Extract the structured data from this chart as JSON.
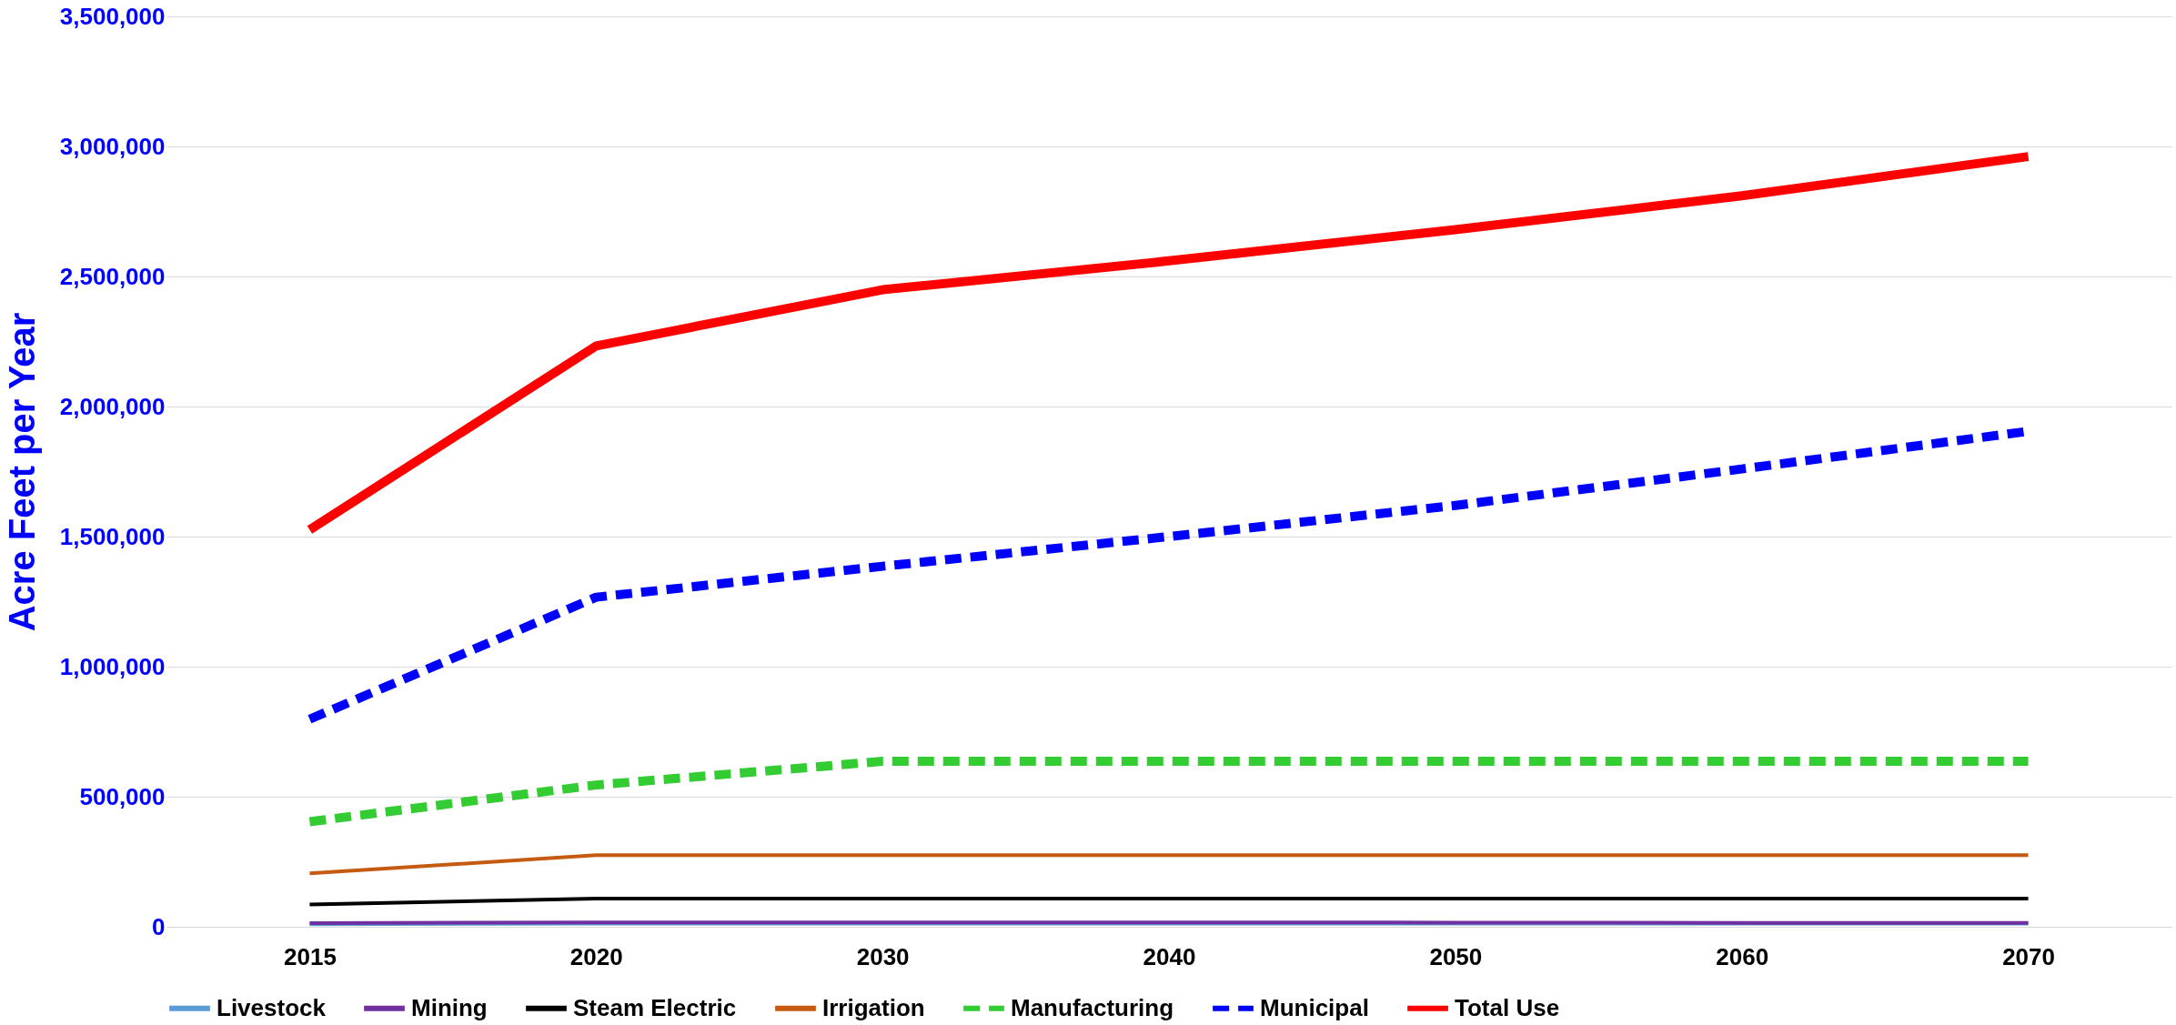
{
  "chart_data": {
    "type": "line",
    "ylabel": "Acre Feet per Year",
    "categories": [
      "2015",
      "2020",
      "2030",
      "2040",
      "2050",
      "2060",
      "2070"
    ],
    "series": [
      {
        "name": "Livestock",
        "color": "#5b9bd5",
        "line_style": "solid",
        "values": [
          10000,
          12000,
          12000,
          12000,
          12000,
          12000,
          12000
        ]
      },
      {
        "name": "Mining",
        "color": "#7030a0",
        "line_style": "solid",
        "values": [
          14000,
          17000,
          17000,
          17000,
          16000,
          15000,
          15000
        ]
      },
      {
        "name": "Steam Electric",
        "color": "#000000",
        "line_style": "solid",
        "values": [
          86000,
          108000,
          108000,
          108000,
          108000,
          108000,
          108000
        ]
      },
      {
        "name": "Irrigation",
        "color": "#c55a11",
        "line_style": "solid",
        "values": [
          205000,
          275000,
          275000,
          275000,
          275000,
          275000,
          275000
        ]
      },
      {
        "name": "Manufacturing",
        "color": "#33cc33",
        "line_style": "dashed",
        "values": [
          404000,
          545000,
          636000,
          636000,
          636000,
          636000,
          636000
        ]
      },
      {
        "name": "Municipal",
        "color": "#0000ff",
        "line_style": "dashed",
        "values": [
          798000,
          1267000,
          1386000,
          1500000,
          1620000,
          1760000,
          1905000
        ]
      },
      {
        "name": "Total Use",
        "color": "#ff0000",
        "line_style": "solid",
        "values": [
          1526000,
          2233000,
          2449000,
          2560000,
          2680000,
          2810000,
          2961000
        ]
      }
    ],
    "ylim": [
      0,
      3500000
    ],
    "yticks": [
      0,
      {
        "value": 500000,
        "label": "500,000"
      },
      {
        "value": 1000000,
        "label": "1,000,000"
      },
      {
        "value": 1500000,
        "label": "1,500,000"
      },
      {
        "value": 2000000,
        "label": "2,000,000"
      },
      {
        "value": 2500000,
        "label": "2,500,000"
      },
      {
        "value": 3000000,
        "label": "3,000,000"
      },
      {
        "value": 3500000,
        "label": "3,500,000"
      }
    ],
    "grid": "y",
    "legend": "bottom",
    "marker": "none"
  }
}
